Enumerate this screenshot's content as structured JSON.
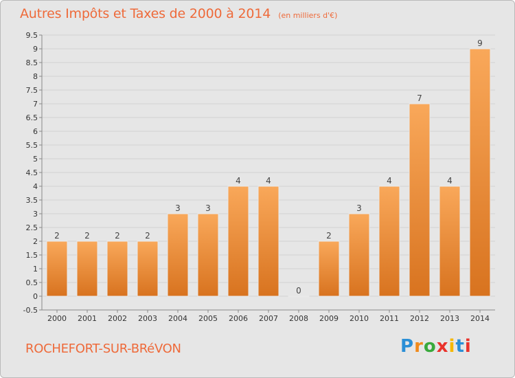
{
  "header": {
    "title": "Autres Impôts et Taxes de 2000 à 2014",
    "subtitle": "(en milliers d'€)"
  },
  "footer": {
    "commune": "ROCHEFORT-SUR-BRéVON",
    "brand": "Proxiti",
    "brand_colors": [
      "#2a8fd6",
      "#f08a1c",
      "#39a93c",
      "#e9322b",
      "#f5b800",
      "#2a8fd6",
      "#e9322b"
    ]
  },
  "colors": {
    "bar_light": "#f9a85a",
    "bar_dark": "#d8731f",
    "title": "#ee6a3a",
    "plot_bg": "#e6e6e6"
  },
  "chart_data": {
    "type": "bar",
    "title": "Autres Impôts et Taxes de 2000 à 2014",
    "subtitle": "(en milliers d'€)",
    "categories": [
      "2000",
      "2001",
      "2002",
      "2003",
      "2004",
      "2005",
      "2006",
      "2007",
      "2008",
      "2009",
      "2010",
      "2011",
      "2012",
      "2013",
      "2014"
    ],
    "values": [
      2,
      2,
      2,
      2,
      3,
      3,
      4,
      4,
      0,
      2,
      3,
      4,
      7,
      4,
      9
    ],
    "value_labels": [
      "2",
      "2",
      "2",
      "2",
      "3",
      "3",
      "4",
      "4",
      "0",
      "2",
      "3",
      "4",
      "7",
      "4",
      "9"
    ],
    "yticks": [
      "-0.5",
      "0",
      "0.5",
      "1",
      "1.5",
      "2",
      "2.5",
      "3",
      "3.5",
      "4",
      "4.5",
      "5",
      "5.5",
      "6",
      "6.5",
      "7",
      "7.5",
      "8",
      "8.5",
      "9",
      "9.5"
    ],
    "ylim": [
      -0.5,
      9.5
    ],
    "grid": true
  }
}
